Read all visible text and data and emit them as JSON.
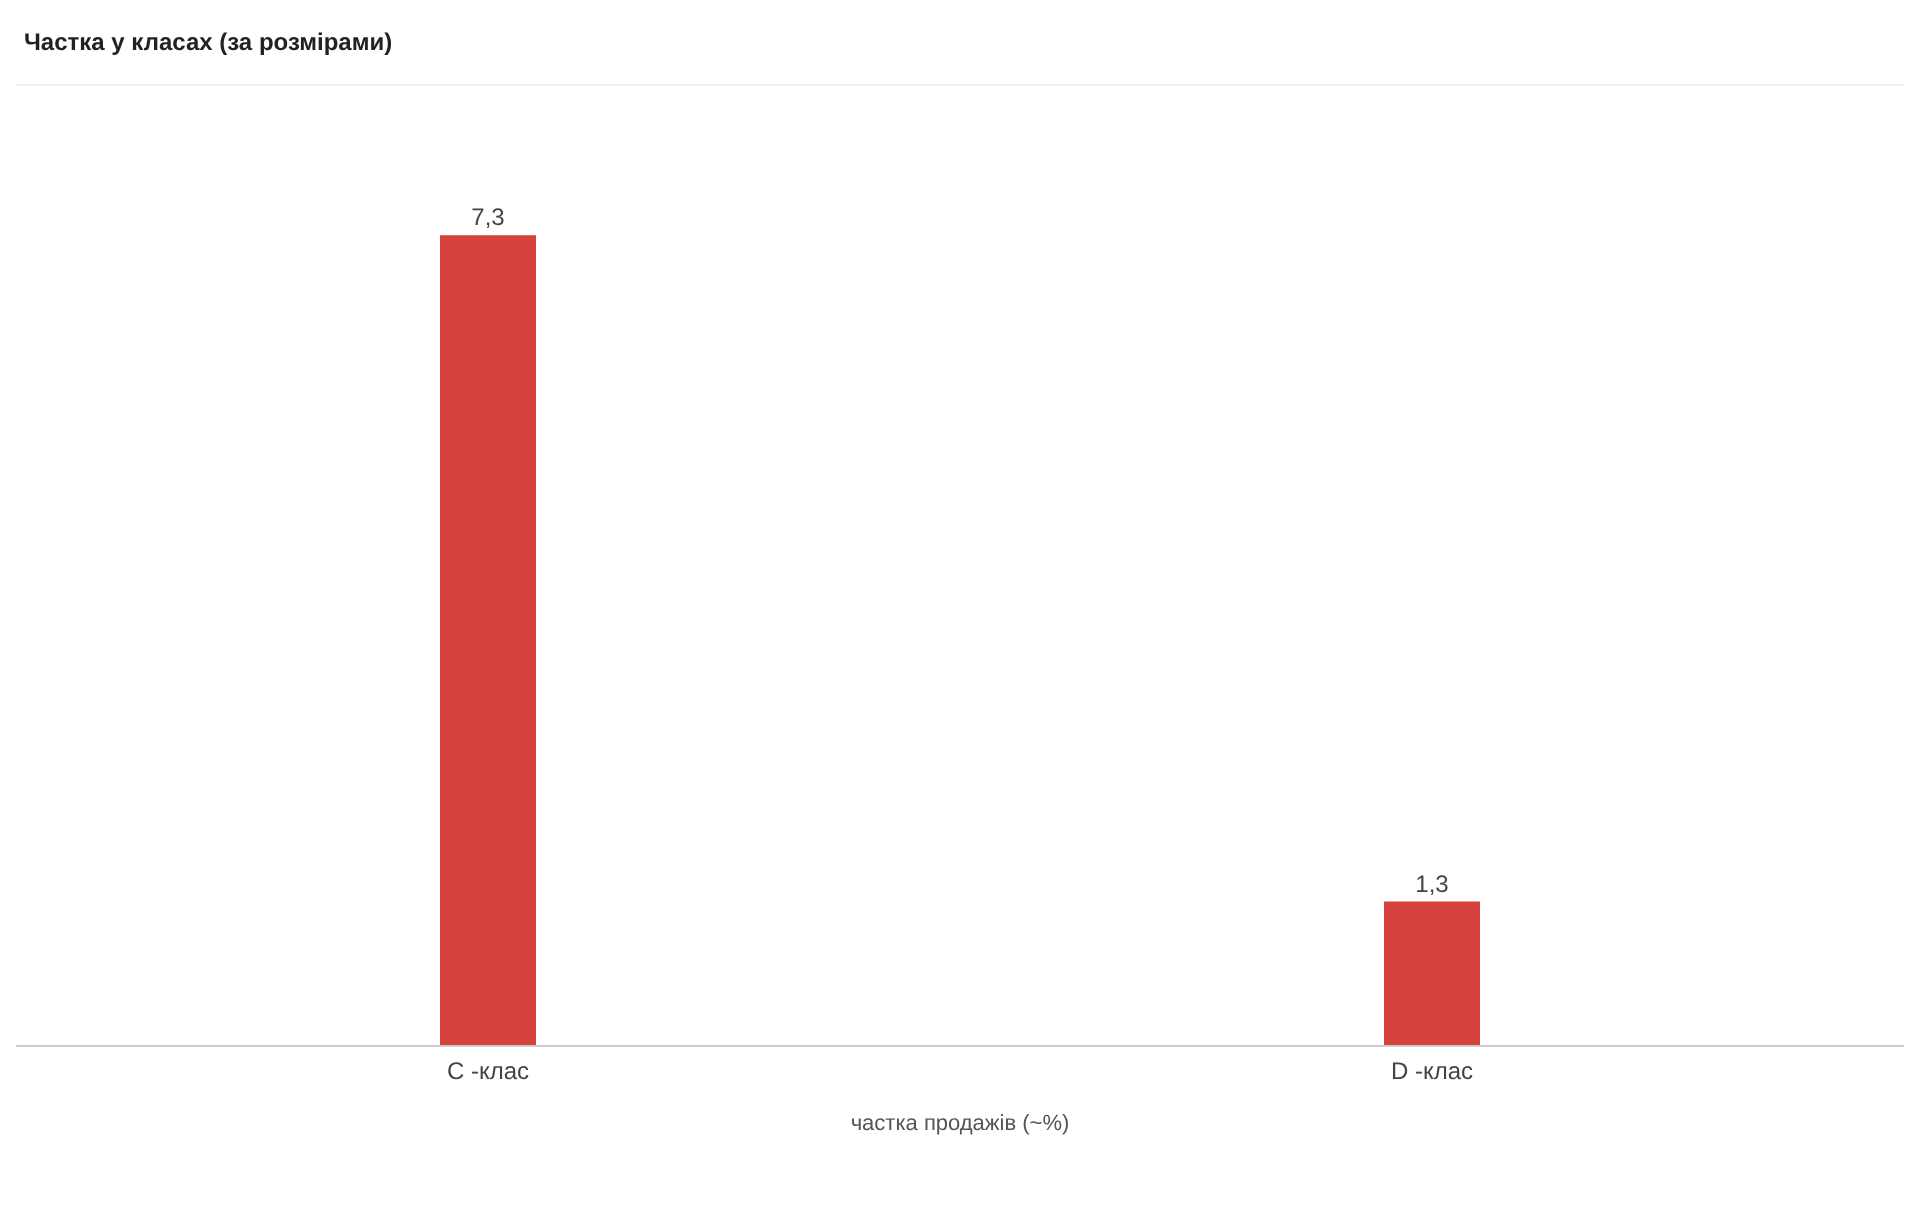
{
  "chart_data": {
    "type": "bar",
    "title": "Частка у класах (за розмірами)",
    "xlabel": "частка продажів (~%)",
    "categories": [
      "C -клас",
      "D -клас"
    ],
    "values": [
      7.3,
      1.3
    ],
    "value_labels": [
      "7,3",
      "1,3"
    ],
    "color": "#d6413d"
  }
}
